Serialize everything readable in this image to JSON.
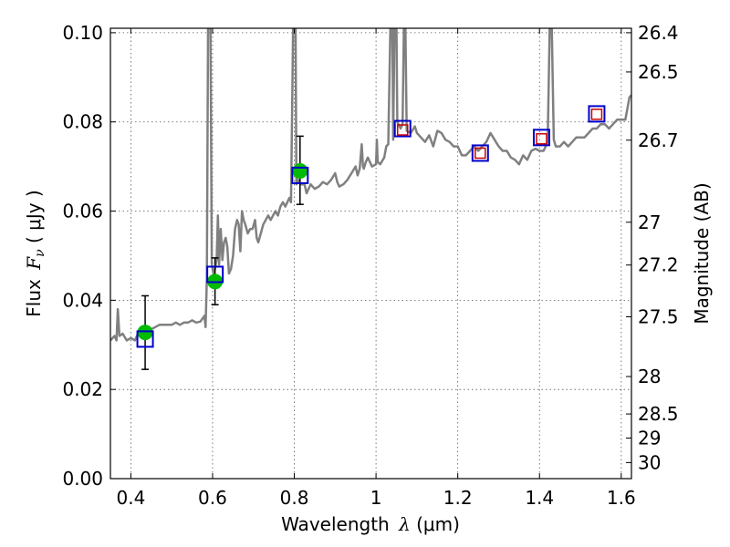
{
  "chart_data": {
    "type": "line",
    "xlabel": {
      "prefix": "Wavelength ",
      "symbol": "λ",
      "unit": " (μm)"
    },
    "ylabel": {
      "prefix": "Flux ",
      "symbol": "F",
      "sub": "ν",
      "unit": " ( μJy )"
    },
    "y2label": "Magnitude (AB)",
    "xlim": [
      0.35,
      1.625
    ],
    "ylim": [
      0.0,
      0.101
    ],
    "grid": true,
    "x_ticks": [
      0.4,
      0.6,
      0.8,
      1.0,
      1.2,
      1.4,
      1.6
    ],
    "x_tick_labels": [
      "0.4",
      "0.6",
      "0.8",
      "1",
      "1.2",
      "1.4",
      "1.6"
    ],
    "y_ticks": [
      0.0,
      0.02,
      0.04,
      0.06,
      0.08,
      0.1
    ],
    "y_tick_labels": [
      "0.00",
      "0.02",
      "0.04",
      "0.06",
      "0.08",
      "0.10"
    ],
    "y2_ticks": [
      {
        "label": "26.4",
        "flux": 0.1
      },
      {
        "label": "26.5",
        "flux": 0.0912
      },
      {
        "label": "26.7",
        "flux": 0.0759
      },
      {
        "label": "27",
        "flux": 0.0575
      },
      {
        "label": "27.2",
        "flux": 0.0479
      },
      {
        "label": "27.5",
        "flux": 0.0363
      },
      {
        "label": "28",
        "flux": 0.0229
      },
      {
        "label": "28.5",
        "flux": 0.0145
      },
      {
        "label": "29",
        "flux": 0.0091
      },
      {
        "label": "30",
        "flux": 0.0036
      }
    ],
    "series": [
      {
        "type": "line",
        "color": "#808080",
        "points": [
          [
            0.35,
            0.031
          ],
          [
            0.36,
            0.032
          ],
          [
            0.365,
            0.031
          ],
          [
            0.368,
            0.038
          ],
          [
            0.372,
            0.032
          ],
          [
            0.38,
            0.0325
          ],
          [
            0.39,
            0.031
          ],
          [
            0.4,
            0.0315
          ],
          [
            0.41,
            0.031
          ],
          [
            0.42,
            0.033
          ],
          [
            0.43,
            0.0335
          ],
          [
            0.44,
            0.034
          ],
          [
            0.45,
            0.0335
          ],
          [
            0.46,
            0.034
          ],
          [
            0.47,
            0.0345
          ],
          [
            0.48,
            0.0345
          ],
          [
            0.49,
            0.0345
          ],
          [
            0.5,
            0.0345
          ],
          [
            0.51,
            0.035
          ],
          [
            0.52,
            0.0345
          ],
          [
            0.53,
            0.035
          ],
          [
            0.54,
            0.035
          ],
          [
            0.55,
            0.0355
          ],
          [
            0.56,
            0.035
          ],
          [
            0.57,
            0.0352
          ],
          [
            0.58,
            0.0365
          ],
          [
            0.583,
            0.034
          ],
          [
            0.586,
            0.045
          ],
          [
            0.589,
            0.101
          ],
          [
            0.595,
            0.101
          ],
          [
            0.598,
            0.048
          ],
          [
            0.602,
            0.046
          ],
          [
            0.606,
            0.047
          ],
          [
            0.61,
            0.049
          ],
          [
            0.613,
            0.059
          ],
          [
            0.616,
            0.048
          ],
          [
            0.62,
            0.056
          ],
          [
            0.624,
            0.049
          ],
          [
            0.628,
            0.053
          ],
          [
            0.632,
            0.054
          ],
          [
            0.636,
            0.052
          ],
          [
            0.64,
            0.046
          ],
          [
            0.645,
            0.047
          ],
          [
            0.65,
            0.05
          ],
          [
            0.655,
            0.056
          ],
          [
            0.66,
            0.058
          ],
          [
            0.664,
            0.057
          ],
          [
            0.668,
            0.051
          ],
          [
            0.672,
            0.06
          ],
          [
            0.676,
            0.058
          ],
          [
            0.68,
            0.057
          ],
          [
            0.686,
            0.055
          ],
          [
            0.692,
            0.056
          ],
          [
            0.698,
            0.056
          ],
          [
            0.704,
            0.058
          ],
          [
            0.708,
            0.054
          ],
          [
            0.712,
            0.053
          ],
          [
            0.718,
            0.055
          ],
          [
            0.724,
            0.057
          ],
          [
            0.73,
            0.058
          ],
          [
            0.736,
            0.059
          ],
          [
            0.742,
            0.058
          ],
          [
            0.748,
            0.059
          ],
          [
            0.754,
            0.06
          ],
          [
            0.76,
            0.059
          ],
          [
            0.766,
            0.061
          ],
          [
            0.772,
            0.062
          ],
          [
            0.778,
            0.061
          ],
          [
            0.783,
            0.062
          ],
          [
            0.788,
            0.063
          ],
          [
            0.792,
            0.062
          ],
          [
            0.795,
            0.085
          ],
          [
            0.797,
            0.101
          ],
          [
            0.803,
            0.101
          ],
          [
            0.805,
            0.066
          ],
          [
            0.81,
            0.067
          ],
          [
            0.815,
            0.066
          ],
          [
            0.82,
            0.066
          ],
          [
            0.825,
            0.066
          ],
          [
            0.83,
            0.064
          ],
          [
            0.84,
            0.066
          ],
          [
            0.85,
            0.065
          ],
          [
            0.86,
            0.0655
          ],
          [
            0.87,
            0.0665
          ],
          [
            0.88,
            0.066
          ],
          [
            0.89,
            0.067
          ],
          [
            0.9,
            0.0685
          ],
          [
            0.905,
            0.0665
          ],
          [
            0.91,
            0.0655
          ],
          [
            0.92,
            0.066
          ],
          [
            0.93,
            0.067
          ],
          [
            0.94,
            0.0685
          ],
          [
            0.95,
            0.07
          ],
          [
            0.955,
            0.068
          ],
          [
            0.96,
            0.0695
          ],
          [
            0.965,
            0.075
          ],
          [
            0.968,
            0.07
          ],
          [
            0.97,
            0.0695
          ],
          [
            0.975,
            0.071
          ],
          [
            0.98,
            0.072
          ],
          [
            0.99,
            0.07
          ],
          [
            1.0,
            0.0705
          ],
          [
            1.002,
            0.076
          ],
          [
            1.004,
            0.071
          ],
          [
            1.01,
            0.0705
          ],
          [
            1.02,
            0.072
          ],
          [
            1.025,
            0.0745
          ],
          [
            1.03,
            0.075
          ],
          [
            1.035,
            0.101
          ],
          [
            1.04,
            0.101
          ],
          [
            1.042,
            0.076
          ],
          [
            1.045,
            0.101
          ],
          [
            1.05,
            0.101
          ],
          [
            1.052,
            0.08
          ],
          [
            1.06,
            0.0785
          ],
          [
            1.065,
            0.0795
          ],
          [
            1.068,
            0.101
          ],
          [
            1.072,
            0.101
          ],
          [
            1.075,
            0.078
          ],
          [
            1.085,
            0.0775
          ],
          [
            1.095,
            0.079
          ],
          [
            1.1,
            0.0775
          ],
          [
            1.11,
            0.0765
          ],
          [
            1.12,
            0.0755
          ],
          [
            1.13,
            0.077
          ],
          [
            1.14,
            0.0745
          ],
          [
            1.15,
            0.078
          ],
          [
            1.16,
            0.0775
          ],
          [
            1.17,
            0.076
          ],
          [
            1.18,
            0.0755
          ],
          [
            1.19,
            0.0745
          ],
          [
            1.2,
            0.0745
          ],
          [
            1.21,
            0.0725
          ],
          [
            1.22,
            0.0725
          ],
          [
            1.23,
            0.0735
          ],
          [
            1.24,
            0.0745
          ],
          [
            1.25,
            0.0735
          ],
          [
            1.26,
            0.0745
          ],
          [
            1.27,
            0.0755
          ],
          [
            1.28,
            0.0775
          ],
          [
            1.29,
            0.076
          ],
          [
            1.3,
            0.0745
          ],
          [
            1.31,
            0.0735
          ],
          [
            1.32,
            0.0735
          ],
          [
            1.33,
            0.072
          ],
          [
            1.34,
            0.0715
          ],
          [
            1.35,
            0.0705
          ],
          [
            1.36,
            0.0725
          ],
          [
            1.37,
            0.0715
          ],
          [
            1.38,
            0.0735
          ],
          [
            1.39,
            0.074
          ],
          [
            1.4,
            0.0735
          ],
          [
            1.41,
            0.0735
          ],
          [
            1.42,
            0.0755
          ],
          [
            1.425,
            0.101
          ],
          [
            1.43,
            0.101
          ],
          [
            1.435,
            0.076
          ],
          [
            1.44,
            0.0745
          ],
          [
            1.45,
            0.0745
          ],
          [
            1.46,
            0.0755
          ],
          [
            1.47,
            0.0745
          ],
          [
            1.48,
            0.0755
          ],
          [
            1.49,
            0.0765
          ],
          [
            1.5,
            0.0765
          ],
          [
            1.51,
            0.0765
          ],
          [
            1.52,
            0.0775
          ],
          [
            1.53,
            0.0785
          ],
          [
            1.54,
            0.0785
          ],
          [
            1.55,
            0.0795
          ],
          [
            1.56,
            0.0795
          ],
          [
            1.57,
            0.0785
          ],
          [
            1.58,
            0.0795
          ],
          [
            1.59,
            0.0805
          ],
          [
            1.6,
            0.0805
          ],
          [
            1.61,
            0.0805
          ],
          [
            1.62,
            0.0855
          ],
          [
            1.625,
            0.086
          ]
        ]
      },
      {
        "type": "scatter",
        "marker": "circle",
        "color": "#00bb00",
        "points": [
          {
            "x": 0.435,
            "y": 0.0328,
            "err_low": 0.0245,
            "err_high": 0.041
          },
          {
            "x": 0.606,
            "y": 0.0442,
            "err_low": 0.039,
            "err_high": 0.0495
          },
          {
            "x": 0.814,
            "y": 0.069,
            "err_low": 0.0615,
            "err_high": 0.0768
          }
        ]
      },
      {
        "type": "scatter",
        "marker": "square-large",
        "color": "#0000cc",
        "points": [
          {
            "x": 0.435,
            "y": 0.0313
          },
          {
            "x": 0.606,
            "y": 0.0458
          },
          {
            "x": 0.814,
            "y": 0.068
          },
          {
            "x": 1.065,
            "y": 0.0785
          },
          {
            "x": 1.255,
            "y": 0.073
          },
          {
            "x": 1.405,
            "y": 0.0765
          },
          {
            "x": 1.54,
            "y": 0.0818
          }
        ]
      },
      {
        "type": "scatter",
        "marker": "square-small",
        "color": "#cc0000",
        "points": [
          {
            "x": 1.065,
            "y": 0.0782
          },
          {
            "x": 1.255,
            "y": 0.073
          },
          {
            "x": 1.405,
            "y": 0.0762
          },
          {
            "x": 1.54,
            "y": 0.0817
          }
        ]
      }
    ]
  }
}
